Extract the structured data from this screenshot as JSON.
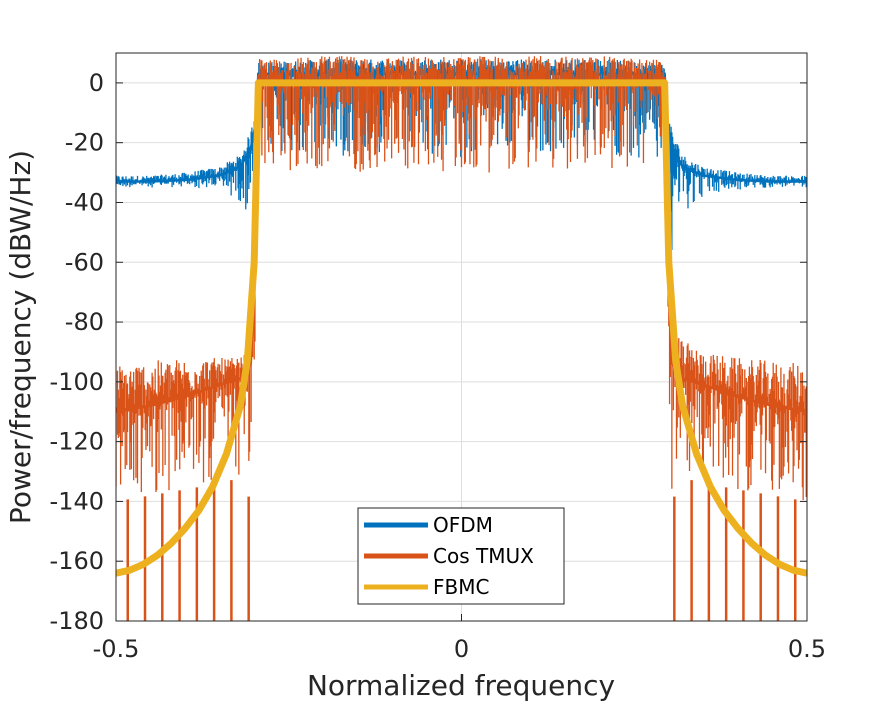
{
  "chart_data": {
    "type": "line",
    "title": "",
    "xlabel": "Normalized frequency",
    "ylabel": "Power/frequency (dBW/Hz)",
    "xlim": [
      -0.5,
      0.5
    ],
    "ylim": [
      -180,
      10
    ],
    "x_ticks": [
      -0.5,
      0,
      0.5
    ],
    "x_tick_labels": [
      "-0.5",
      "0",
      "0.5"
    ],
    "y_ticks": [
      0,
      -20,
      -40,
      -60,
      -80,
      -100,
      -120,
      -140,
      -160,
      -180
    ],
    "y_tick_labels": [
      "0",
      "-20",
      "-40",
      "-60",
      "-80",
      "-100",
      "-120",
      "-140",
      "-160",
      "-180"
    ],
    "grid": true,
    "legend_position": "bottom-center",
    "band_edges": [
      -0.294,
      0.294
    ],
    "series": [
      {
        "name": "OFDM",
        "color": "#0072BD",
        "x": [
          -0.5,
          -0.45,
          -0.4,
          -0.35,
          -0.32,
          -0.305,
          -0.298,
          -0.294,
          -0.28,
          -0.2,
          -0.1,
          0,
          0.1,
          0.2,
          0.28,
          0.294,
          0.298,
          0.305,
          0.32,
          0.35,
          0.4,
          0.45,
          0.5
        ],
        "y": [
          -33,
          -33,
          -32.5,
          -31,
          -28,
          -22,
          -14,
          3,
          3,
          3,
          3,
          3,
          3,
          3,
          3,
          3,
          -14,
          -22,
          -28,
          -31,
          -32.5,
          -33,
          -33
        ],
        "min": [
          -35,
          -35,
          -35,
          -36,
          -40,
          -45,
          -48,
          -25,
          -25,
          -25,
          -25,
          -25,
          -25,
          -25,
          -25,
          -25,
          -48,
          -57,
          -44,
          -38,
          -36,
          -35,
          -35
        ],
        "max": [
          -31,
          -31,
          -30,
          -28,
          -24,
          -16,
          -8,
          7,
          7,
          8,
          8,
          8,
          8,
          8,
          7,
          7,
          -8,
          -16,
          -24,
          -28,
          -30,
          -31,
          -31
        ]
      },
      {
        "name": "Cos TMUX",
        "color": "#D95319",
        "x": [
          -0.5,
          -0.45,
          -0.4,
          -0.35,
          -0.32,
          -0.305,
          -0.298,
          -0.294,
          -0.28,
          -0.2,
          -0.1,
          0,
          0.1,
          0.2,
          0.28,
          0.294,
          0.298,
          0.305,
          0.32,
          0.35,
          0.4,
          0.45,
          0.5
        ],
        "y": [
          -110,
          -108,
          -105,
          -101,
          -99,
          -94,
          -60,
          0,
          0,
          0,
          0,
          0,
          0,
          0,
          0,
          0,
          -60,
          -94,
          -99,
          -101,
          -105,
          -108,
          -110
        ],
        "min": [
          -140,
          -138,
          -136,
          -134,
          -132,
          -140,
          -90,
          -30,
          -30,
          -30,
          -30,
          -30,
          -30,
          -30,
          -30,
          -30,
          -90,
          -140,
          -132,
          -134,
          -136,
          -138,
          -140
        ],
        "max": [
          -94,
          -93,
          -92,
          -92,
          -92,
          -88,
          -30,
          8,
          8,
          9,
          9,
          9,
          9,
          9,
          8,
          8,
          -30,
          -82,
          -86,
          -90,
          -92,
          -93,
          -94
        ],
        "nulls": {
          "x": [
            -0.483,
            -0.458,
            -0.433,
            -0.408,
            -0.383,
            -0.358,
            -0.333,
            -0.308,
            0.308,
            0.333,
            0.358,
            0.383,
            0.408,
            0.433,
            0.458,
            0.483
          ],
          "y": -180
        }
      },
      {
        "name": "FBMC",
        "color": "#EDB120",
        "x": [
          -0.5,
          -0.48,
          -0.46,
          -0.44,
          -0.42,
          -0.4,
          -0.38,
          -0.36,
          -0.34,
          -0.32,
          -0.31,
          -0.3,
          -0.296,
          -0.294,
          -0.2,
          0,
          0.2,
          0.294,
          0.296,
          0.3,
          0.31,
          0.32,
          0.34,
          0.36,
          0.38,
          0.4,
          0.42,
          0.44,
          0.46,
          0.48,
          0.5
        ],
        "y": [
          -164,
          -163,
          -161,
          -158,
          -154,
          -149,
          -143,
          -135,
          -124,
          -108,
          -93,
          -60,
          -20,
          0,
          0,
          0,
          0,
          0,
          -20,
          -60,
          -93,
          -108,
          -124,
          -135,
          -143,
          -149,
          -154,
          -158,
          -161,
          -163,
          -164
        ]
      }
    ]
  }
}
